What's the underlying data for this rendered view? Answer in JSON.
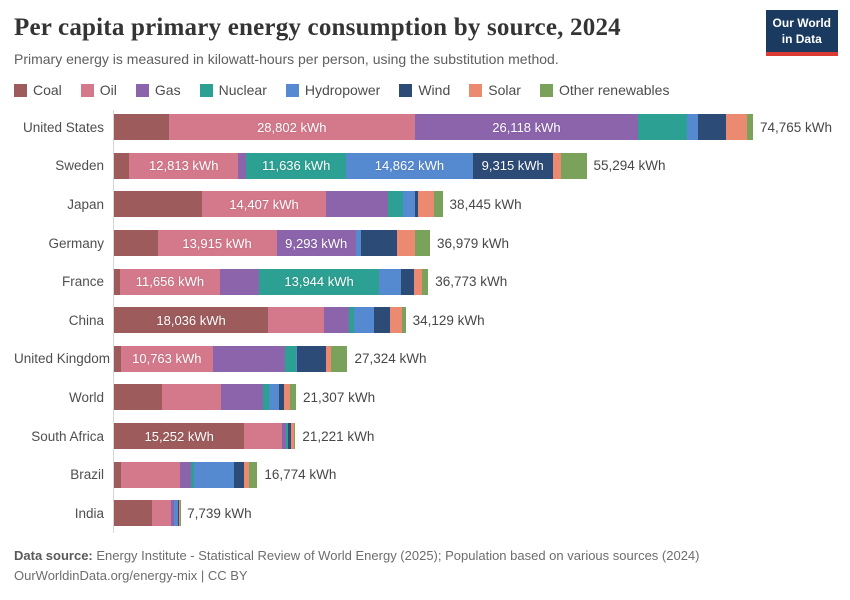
{
  "header": {
    "title": "Per capita primary energy consumption by source, 2024",
    "subtitle": "Primary energy is measured in kilowatt-hours per person, using the substitution method.",
    "logo": {
      "line1": "Our World",
      "line2": "in Data",
      "bg_color": "#1a3a5f",
      "accent_color": "#dc3b34"
    }
  },
  "legend": [
    {
      "key": "coal",
      "label": "Coal"
    },
    {
      "key": "oil",
      "label": "Oil"
    },
    {
      "key": "gas",
      "label": "Gas"
    },
    {
      "key": "nuclear",
      "label": "Nuclear"
    },
    {
      "key": "hydropower",
      "label": "Hydropower"
    },
    {
      "key": "wind",
      "label": "Wind"
    },
    {
      "key": "solar",
      "label": "Solar"
    },
    {
      "key": "other",
      "label": "Other renewables"
    }
  ],
  "chart_data": {
    "type": "bar",
    "orientation": "horizontal-stacked",
    "unit": "kWh",
    "xlim": [
      0,
      74765
    ],
    "grid": false,
    "series_order": [
      "coal",
      "oil",
      "gas",
      "nuclear",
      "hydropower",
      "wind",
      "solar",
      "other"
    ],
    "colors": {
      "coal": "#9e5b5c",
      "oil": "#d4798b",
      "gas": "#8c64ac",
      "nuclear": "#2ca092",
      "hydropower": "#5589d0",
      "wind": "#2d4b77",
      "solar": "#eb8a70",
      "other": "#7ba25b"
    },
    "rows": [
      {
        "country": "United States",
        "total": 74765,
        "total_label": "74,765 kWh",
        "values": {
          "coal": 6400,
          "oil": 28802,
          "gas": 26118,
          "nuclear": 5750,
          "hydropower": 1270,
          "wind": 3230,
          "solar": 2500,
          "other": 695
        },
        "segment_labels": {
          "oil": "28,802 kWh",
          "gas": "26,118 kWh"
        }
      },
      {
        "country": "Sweden",
        "total": 55294,
        "total_label": "55,294 kWh",
        "values": {
          "coal": 1755,
          "oil": 12813,
          "gas": 936,
          "nuclear": 11636,
          "hydropower": 14862,
          "wind": 9315,
          "solar": 936,
          "other": 3041
        },
        "segment_labels": {
          "oil": "12,813 kWh",
          "nuclear": "11,636 kWh",
          "hydropower": "14,862 kWh",
          "wind": "9,315 kWh"
        }
      },
      {
        "country": "Japan",
        "total": 38445,
        "total_label": "38,445 kWh",
        "values": {
          "coal": 10350,
          "oil": 14407,
          "gas": 7300,
          "nuclear": 1750,
          "hydropower": 1450,
          "wind": 300,
          "solar": 1900,
          "other": 988
        },
        "segment_labels": {
          "oil": "14,407 kWh"
        }
      },
      {
        "country": "Germany",
        "total": 36979,
        "total_label": "36,979 kWh",
        "values": {
          "coal": 5100,
          "oil": 13915,
          "gas": 9293,
          "nuclear": 0,
          "hydropower": 600,
          "wind": 4200,
          "solar": 2150,
          "other": 1721
        },
        "segment_labels": {
          "oil": "13,915 kWh",
          "gas": "9,293 kWh"
        }
      },
      {
        "country": "France",
        "total": 36773,
        "total_label": "36,773 kWh",
        "values": {
          "coal": 720,
          "oil": 11656,
          "gas": 4650,
          "nuclear": 13944,
          "hydropower": 2620,
          "wind": 1550,
          "solar": 950,
          "other": 683
        },
        "segment_labels": {
          "oil": "11,656 kWh",
          "nuclear": "13,944 kWh"
        }
      },
      {
        "country": "China",
        "total": 34129,
        "total_label": "34,129 kWh",
        "values": {
          "coal": 18036,
          "oil": 6500,
          "gas": 2925,
          "nuclear": 585,
          "hydropower": 2400,
          "wind": 1800,
          "solar": 1450,
          "other": 433
        },
        "segment_labels": {
          "coal": "18,036 kWh"
        }
      },
      {
        "country": "United Kingdom",
        "total": 27324,
        "total_label": "27,324 kWh",
        "values": {
          "coal": 800,
          "oil": 10763,
          "gas": 8450,
          "nuclear": 1250,
          "hydropower": 150,
          "wind": 3400,
          "solar": 610,
          "other": 1901
        },
        "segment_labels": {
          "oil": "10,763 kWh"
        }
      },
      {
        "country": "World",
        "total": 21307,
        "total_label": "21,307 kWh",
        "values": {
          "coal": 5650,
          "oil": 6850,
          "gas": 4930,
          "nuclear": 700,
          "hydropower": 1130,
          "wind": 630,
          "solar": 710,
          "other": 707
        },
        "segment_labels": {}
      },
      {
        "country": "South Africa",
        "total": 21221,
        "total_label": "21,221 kWh",
        "values": {
          "coal": 15252,
          "oil": 4450,
          "gas": 380,
          "nuclear": 250,
          "hydropower": 0,
          "wind": 420,
          "solar": 320,
          "other": 149
        },
        "segment_labels": {
          "coal": "15,252 kWh"
        }
      },
      {
        "country": "Brazil",
        "total": 16774,
        "total_label": "16,774 kWh",
        "values": {
          "coal": 800,
          "oil": 6900,
          "gas": 1300,
          "nuclear": 350,
          "hydropower": 4750,
          "wind": 1100,
          "solar": 600,
          "other": 974
        },
        "segment_labels": {}
      },
      {
        "country": "India",
        "total": 7739,
        "total_label": "7,739 kWh",
        "values": {
          "coal": 4450,
          "oil": 2200,
          "gas": 350,
          "nuclear": 60,
          "hydropower": 400,
          "wind": 140,
          "solar": 100,
          "other": 39
        },
        "segment_labels": {}
      }
    ]
  },
  "footer": {
    "line1_bold": "Data source:",
    "line1_rest": " Energy Institute - Statistical Review of World Energy (2025); Population based on various sources (2024)",
    "line2": "OurWorldinData.org/energy-mix | CC BY"
  }
}
